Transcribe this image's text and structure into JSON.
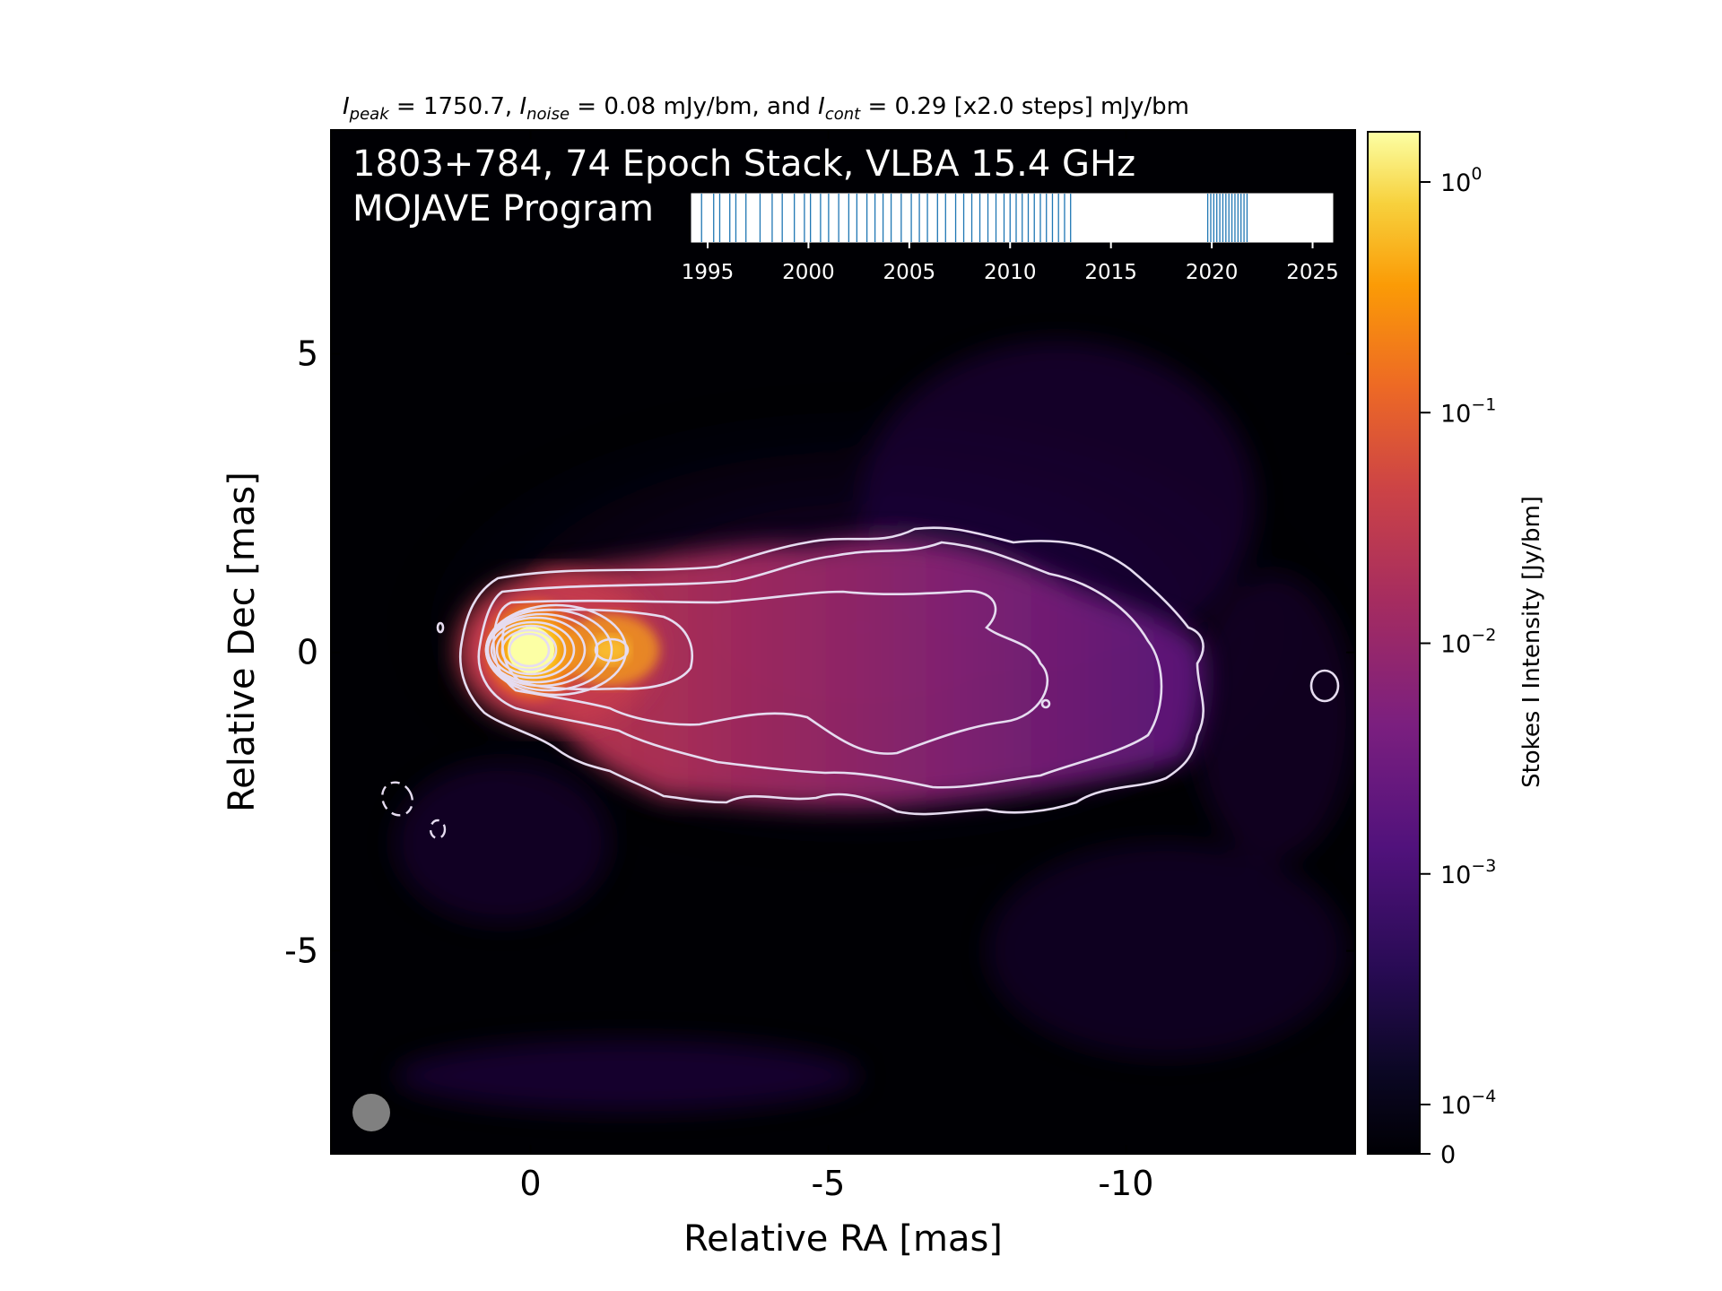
{
  "figure": {
    "header_text": "I_peak = 1750.7, I_noise = 0.08 mJy/bm, and I_cont = 0.29 [x2.0 steps] mJy/bm",
    "header": {
      "i1": "I",
      "s1": "peak",
      "t1": " = 1750.7, ",
      "i2": "I",
      "s2": "noise",
      "t2": " = 0.08 mJy/bm, and ",
      "i3": "I",
      "s3": "cont",
      "t3": " = 0.29 [x2.0 steps] mJy/bm"
    },
    "title_line1": "1803+784, 74 Epoch Stack, VLBA 15.4 GHz",
    "title_line2": "MOJAVE Program"
  },
  "chart_data": [
    {
      "type": "heatmap",
      "description_source": "Stacked VLBA total-intensity image with contours",
      "xlabel": "Relative RA [mas]",
      "ylabel": "Relative Dec [mas]",
      "x_ticks": [
        0,
        -5,
        -10
      ],
      "x_tick_labels": [
        "0",
        "-5",
        "-10"
      ],
      "y_ticks": [
        5,
        0,
        -5
      ],
      "y_tick_labels": [
        "5",
        "0",
        "-5"
      ],
      "xlim": [
        3.35,
        -13.85
      ],
      "ylim": [
        -8.4,
        8.75
      ],
      "peak_intensity_mJy_per_beam": 1750.7,
      "noise_mJy_per_beam": 0.08,
      "lowest_contour_mJy_per_beam": 0.29,
      "contour_step_factor": 2.0,
      "colormap": "inferno",
      "contour_color": "#e6dcf0",
      "colorbar": {
        "label": "Stokes I Intensity [Jy/bm]",
        "scale": "log",
        "tick_values": [
          1,
          0.1,
          0.01,
          0.001,
          0.0001,
          0
        ],
        "tick_labels": [
          {
            "base": "10",
            "exp": "0"
          },
          {
            "base": "10",
            "exp": "−1"
          },
          {
            "base": "10",
            "exp": "−2"
          },
          {
            "base": "10",
            "exp": "−3"
          },
          {
            "base": "10",
            "exp": "−4"
          },
          {
            "base": "0",
            "exp": ""
          }
        ]
      },
      "components": [
        {
          "ra": 0.0,
          "dec": 0.0,
          "note": "core peak"
        },
        {
          "ra": -1.3,
          "dec": 0.0,
          "note": "inner jet knot"
        }
      ],
      "beam": {
        "shape": "circle",
        "color": "#808080"
      }
    },
    {
      "type": "line",
      "description_source": "Inset epoch timeline (vertical lines mark observing epochs)",
      "x_ticks": [
        1995,
        2000,
        2005,
        2010,
        2015,
        2020,
        2025
      ],
      "x_tick_labels": [
        "1995",
        "2000",
        "2005",
        "2010",
        "2015",
        "2020",
        "2025"
      ],
      "xlim": [
        1994.2,
        2026.0
      ],
      "line_color": "#1f77b4",
      "epochs": [
        1994.7,
        1995.3,
        1995.6,
        1996.1,
        1996.4,
        1996.9,
        1997.6,
        1998.2,
        1998.7,
        1999.3,
        1999.8,
        2000.1,
        2000.6,
        2001.0,
        2001.5,
        2002.0,
        2002.4,
        2002.9,
        2003.3,
        2003.7,
        2004.1,
        2004.6,
        2005.1,
        2005.5,
        2005.9,
        2006.4,
        2006.8,
        2007.3,
        2007.7,
        2008.1,
        2008.5,
        2008.9,
        2009.3,
        2009.7,
        2010.0,
        2010.3,
        2010.6,
        2010.9,
        2011.2,
        2011.5,
        2011.8,
        2012.1,
        2012.4,
        2012.7,
        2013.0,
        2019.8,
        2019.95,
        2020.1,
        2020.25,
        2020.4,
        2020.55,
        2020.7,
        2020.85,
        2021.0,
        2021.15,
        2021.3,
        2021.45,
        2021.6,
        2021.75
      ]
    }
  ]
}
